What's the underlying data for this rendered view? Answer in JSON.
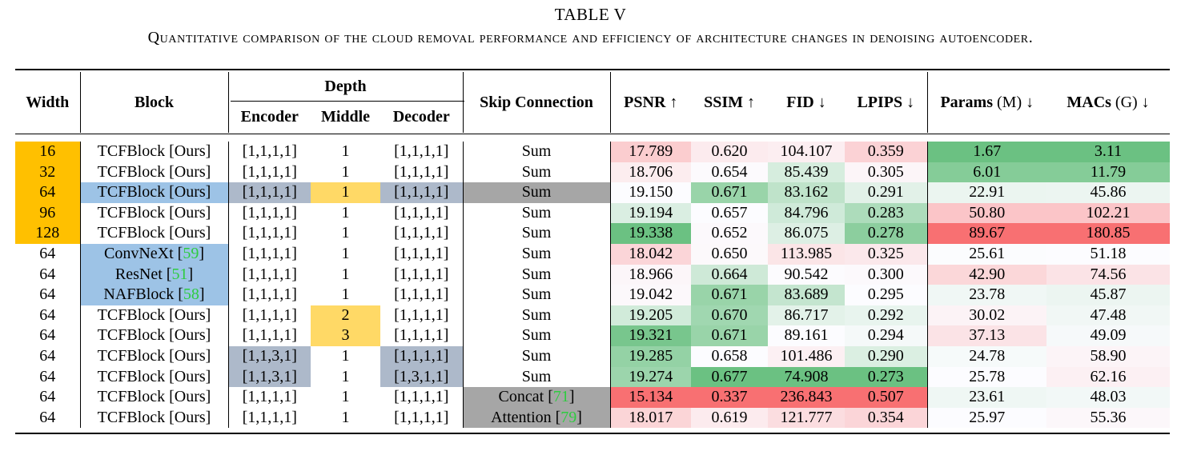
{
  "table_title": "TABLE V",
  "caption": "Quantitative comparison of the cloud removal performance and efficiency of architecture changes in denoising autoencoder.",
  "headers": {
    "width": "Width",
    "block": "Block",
    "depth": "Depth",
    "encoder": "Encoder",
    "middle": "Middle",
    "decoder": "Decoder",
    "skip": "Skip Connection",
    "psnr": "PSNR ↑",
    "ssim": "SSIM ↑",
    "fid": "FID ↓",
    "lpips": "LPIPS ↓",
    "params_name": "Params",
    "params_unit": " (M) ↓",
    "macs_name": "MACs",
    "macs_unit": " (G) ↓"
  },
  "colors": {
    "orange": "#ffc000",
    "blue": "#9dc3e6",
    "gray": "#a6a6a6",
    "slate": "#adb9ca",
    "yellow": "#ffd966",
    "cite": "#2ecc40",
    "good": "#63be7b",
    "bad": "#f8696b",
    "neutral": "#fcfcff"
  },
  "rows": [
    {
      "width": "16",
      "block": "TCFBlock [Ours]",
      "encoder": "[1,1,1,1]",
      "middle": "1",
      "decoder": "[1,1,1,1]",
      "skip": "Sum",
      "psnr": "17.789",
      "ssim": "0.620",
      "fid": "104.107",
      "lpips": "0.359",
      "params": "1.67",
      "macs": "3.11",
      "hl": {
        "width": "orange"
      }
    },
    {
      "width": "32",
      "block": "TCFBlock [Ours]",
      "encoder": "[1,1,1,1]",
      "middle": "1",
      "decoder": "[1,1,1,1]",
      "skip": "Sum",
      "psnr": "18.706",
      "ssim": "0.654",
      "fid": "85.439",
      "lpips": "0.305",
      "params": "6.01",
      "macs": "11.79",
      "hl": {
        "width": "orange"
      }
    },
    {
      "width": "64",
      "block": "TCFBlock [Ours]",
      "encoder": "[1,1,1,1]",
      "middle": "1",
      "decoder": "[1,1,1,1]",
      "skip": "Sum",
      "psnr": "19.150",
      "ssim": "0.671",
      "fid": "83.162",
      "lpips": "0.291",
      "params": "22.91",
      "macs": "45.86",
      "hl": {
        "width": "orange",
        "block": "blue",
        "encoder": "slate",
        "middle": "yellow",
        "decoder": "slate",
        "skip": "gray"
      }
    },
    {
      "width": "96",
      "block": "TCFBlock [Ours]",
      "encoder": "[1,1,1,1]",
      "middle": "1",
      "decoder": "[1,1,1,1]",
      "skip": "Sum",
      "psnr": "19.194",
      "ssim": "0.657",
      "fid": "84.796",
      "lpips": "0.283",
      "params": "50.80",
      "macs": "102.21",
      "hl": {
        "width": "orange"
      }
    },
    {
      "width": "128",
      "block": "TCFBlock [Ours]",
      "encoder": "[1,1,1,1]",
      "middle": "1",
      "decoder": "[1,1,1,1]",
      "skip": "Sum",
      "psnr": "19.338",
      "ssim": "0.652",
      "fid": "86.075",
      "lpips": "0.278",
      "params": "89.67",
      "macs": "180.85",
      "hl": {
        "width": "orange"
      }
    },
    {
      "width": "64",
      "block": "ConvNeXt",
      "cite": "59",
      "encoder": "[1,1,1,1]",
      "middle": "1",
      "decoder": "[1,1,1,1]",
      "skip": "Sum",
      "psnr": "18.042",
      "ssim": "0.650",
      "fid": "113.985",
      "lpips": "0.325",
      "params": "25.61",
      "macs": "51.18",
      "hl": {
        "block": "blue"
      }
    },
    {
      "width": "64",
      "block": "ResNet",
      "cite": "51",
      "encoder": "[1,1,1,1]",
      "middle": "1",
      "decoder": "[1,1,1,1]",
      "skip": "Sum",
      "psnr": "18.966",
      "ssim": "0.664",
      "fid": "90.542",
      "lpips": "0.300",
      "params": "42.90",
      "macs": "74.56",
      "hl": {
        "block": "blue"
      }
    },
    {
      "width": "64",
      "block": "NAFBlock",
      "cite": "58",
      "encoder": "[1,1,1,1]",
      "middle": "1",
      "decoder": "[1,1,1,1]",
      "skip": "Sum",
      "psnr": "19.042",
      "ssim": "0.671",
      "fid": "83.689",
      "lpips": "0.295",
      "params": "23.78",
      "macs": "45.87",
      "hl": {
        "block": "blue"
      }
    },
    {
      "width": "64",
      "block": "TCFBlock [Ours]",
      "encoder": "[1,1,1,1]",
      "middle": "2",
      "decoder": "[1,1,1,1]",
      "skip": "Sum",
      "psnr": "19.205",
      "ssim": "0.670",
      "fid": "86.717",
      "lpips": "0.292",
      "params": "30.02",
      "macs": "47.48",
      "hl": {
        "middle": "yellow"
      }
    },
    {
      "width": "64",
      "block": "TCFBlock [Ours]",
      "encoder": "[1,1,1,1]",
      "middle": "3",
      "decoder": "[1,1,1,1]",
      "skip": "Sum",
      "psnr": "19.321",
      "ssim": "0.671",
      "fid": "89.161",
      "lpips": "0.294",
      "params": "37.13",
      "macs": "49.09",
      "hl": {
        "middle": "yellow"
      }
    },
    {
      "width": "64",
      "block": "TCFBlock [Ours]",
      "encoder": "[1,1,3,1]",
      "middle": "1",
      "decoder": "[1,1,1,1]",
      "skip": "Sum",
      "psnr": "19.285",
      "ssim": "0.658",
      "fid": "101.486",
      "lpips": "0.290",
      "params": "24.78",
      "macs": "58.90",
      "hl": {
        "encoder": "slate",
        "decoder": "slate"
      }
    },
    {
      "width": "64",
      "block": "TCFBlock [Ours]",
      "encoder": "[1,1,3,1]",
      "middle": "1",
      "decoder": "[1,3,1,1]",
      "skip": "Sum",
      "psnr": "19.274",
      "ssim": "0.677",
      "fid": "74.908",
      "lpips": "0.273",
      "params": "25.78",
      "macs": "62.16",
      "hl": {
        "encoder": "slate",
        "decoder": "slate"
      }
    },
    {
      "width": "64",
      "block": "TCFBlock [Ours]",
      "encoder": "[1,1,1,1]",
      "middle": "1",
      "decoder": "[1,1,1,1]",
      "skip": "Concat",
      "skip_cite": "71",
      "psnr": "15.134",
      "ssim": "0.337",
      "fid": "236.843",
      "lpips": "0.507",
      "params": "23.61",
      "macs": "48.03",
      "hl": {
        "skip": "gray"
      }
    },
    {
      "width": "64",
      "block": "TCFBlock [Ours]",
      "encoder": "[1,1,1,1]",
      "middle": "1",
      "decoder": "[1,1,1,1]",
      "skip": "Attention",
      "skip_cite": "79",
      "psnr": "18.017",
      "ssim": "0.619",
      "fid": "121.777",
      "lpips": "0.354",
      "params": "25.97",
      "macs": "55.36",
      "hl": {
        "skip": "gray"
      }
    }
  ]
}
